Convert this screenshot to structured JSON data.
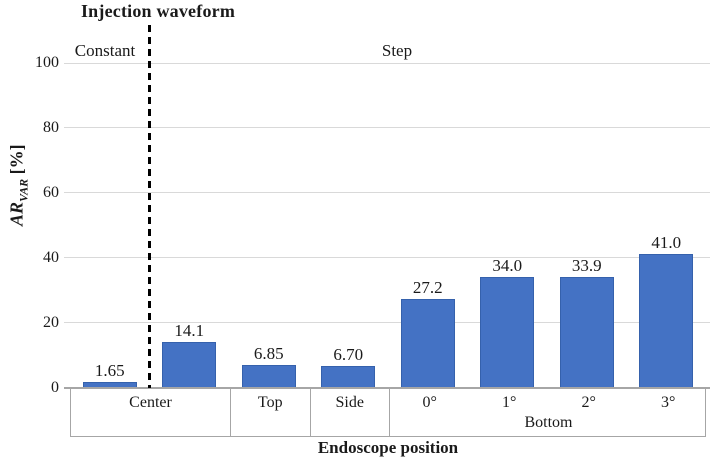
{
  "header": {
    "title": "Injection waveform",
    "regions": [
      "Constant",
      "Step"
    ]
  },
  "y_axis": {
    "prefix": "AR",
    "subscript": "VAR",
    "suffix": " [%]"
  },
  "x_axis": {
    "title": "Endoscope position"
  },
  "chart_data": {
    "type": "bar",
    "title": "Injection waveform",
    "xlabel": "Endoscope position",
    "ylabel": "AR_VAR [%]",
    "ylim": [
      0,
      100
    ],
    "yticks": [
      0,
      20,
      40,
      60,
      80,
      100
    ],
    "grid": true,
    "legend": false,
    "groups": [
      {
        "group": "Center",
        "bars": [
          {
            "sub": "",
            "value": 1.65,
            "label": "1.65"
          },
          {
            "sub": "",
            "value": 14.1,
            "label": "14.1"
          }
        ]
      },
      {
        "group": "Top",
        "bars": [
          {
            "sub": "",
            "value": 6.85,
            "label": "6.85"
          }
        ]
      },
      {
        "group": "Side",
        "bars": [
          {
            "sub": "",
            "value": 6.7,
            "label": "6.70"
          }
        ]
      },
      {
        "group": "Bottom",
        "bars": [
          {
            "sub": "0°",
            "value": 27.2,
            "label": "27.2"
          },
          {
            "sub": "1°",
            "value": 34.0,
            "label": "34.0"
          },
          {
            "sub": "2°",
            "value": 33.9,
            "label": "33.9"
          },
          {
            "sub": "3°",
            "value": 41.0,
            "label": "41.0"
          }
        ]
      }
    ],
    "annotations": {
      "divider_after_bar_index": 0,
      "divider_style": "dashed",
      "region_left": "Constant",
      "region_right": "Step"
    }
  },
  "colors": {
    "bar_fill": "#4472C4",
    "bar_border": "#3561AC",
    "gridline": "#D9D9D9",
    "axis_line": "#A6A6A6",
    "table_border": "#A6A6A6",
    "divider": "#000000",
    "text": "#1A1A1A"
  }
}
